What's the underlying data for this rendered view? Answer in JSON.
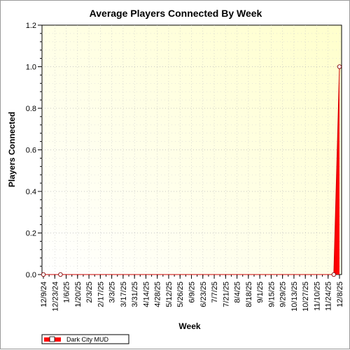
{
  "chart_data": {
    "type": "area",
    "title": "Average Players Connected By Week",
    "xlabel": "Week",
    "ylabel": "Players Connected",
    "ylim": [
      0,
      1.2
    ],
    "y_ticks": [
      "0.0",
      "0.2",
      "0.4",
      "0.6",
      "0.8",
      "1.0",
      "1.2"
    ],
    "x_labels": [
      "12/9/24",
      "12/23/24",
      "1/6/25",
      "1/20/25",
      "2/3/25",
      "2/17/25",
      "3/3/25",
      "3/17/25",
      "3/31/25",
      "4/14/25",
      "4/28/25",
      "5/12/25",
      "5/26/25",
      "6/9/25",
      "6/23/25",
      "7/7/25",
      "7/21/25",
      "8/4/25",
      "8/18/25",
      "9/1/25",
      "9/15/25",
      "9/29/25",
      "10/13/25",
      "10/27/25",
      "11/10/25",
      "11/24/25",
      "12/8/25"
    ],
    "grid": true,
    "legend_position": "bottom-left",
    "series": [
      {
        "name": "Dark City MUD",
        "color": "#ff0000",
        "x": [
          "12/9/24",
          "12/30/24",
          "12/1/25",
          "12/8/25"
        ],
        "values": [
          0,
          0,
          0,
          1.0
        ]
      }
    ]
  }
}
